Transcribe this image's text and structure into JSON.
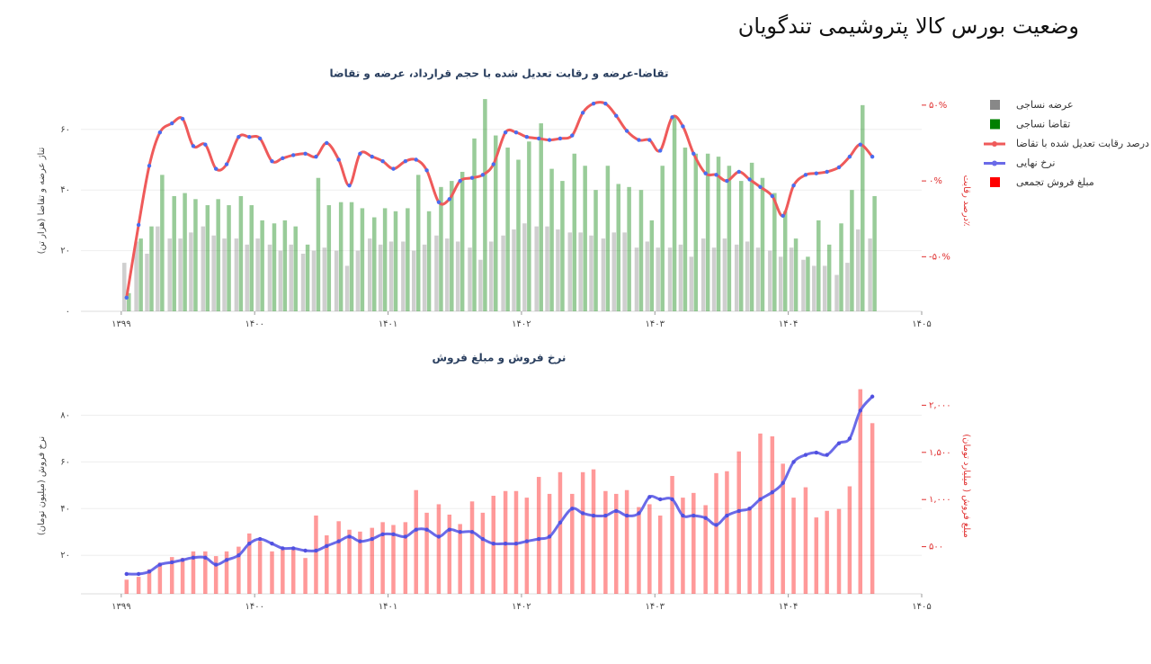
{
  "title": "وضعیت بورس کالا پتروشیمی تندگویان",
  "chart_data": [
    {
      "type": "combo",
      "title": "تقاضا-عرضه و رقابت تعدیل شده با حجم قرارداد، عرضه و تقاضا",
      "ylabel": "تناژ عرضه و تقاضا (هزار تن)",
      "y2label": "درصد رقابت٪",
      "x": [
        1399.04,
        1399.13,
        1399.21,
        1399.29,
        1399.38,
        1399.46,
        1399.54,
        1399.63,
        1399.71,
        1399.79,
        1399.88,
        1399.96,
        1400.04,
        1400.13,
        1400.21,
        1400.29,
        1400.38,
        1400.46,
        1400.54,
        1400.63,
        1400.71,
        1400.79,
        1400.88,
        1400.96,
        1401.04,
        1401.13,
        1401.21,
        1401.29,
        1401.38,
        1401.46,
        1401.54,
        1401.63,
        1401.71,
        1401.79,
        1401.88,
        1401.96,
        1402.04,
        1402.13,
        1402.21,
        1402.29,
        1402.38,
        1402.46,
        1402.54,
        1402.63,
        1402.71,
        1402.79,
        1402.88,
        1402.96,
        1403.04,
        1403.13,
        1403.21,
        1403.29,
        1403.38,
        1403.46,
        1403.54,
        1403.63,
        1403.71,
        1403.79,
        1403.88,
        1403.96,
        1404.04,
        1404.13,
        1404.21,
        1404.29,
        1404.38,
        1404.46,
        1404.54,
        1404.63
      ],
      "series": [
        {
          "name": "عرضه نساجی",
          "type": "bar",
          "color": "#888888",
          "values": [
            16,
            23,
            19,
            28,
            24,
            24,
            26,
            28,
            25,
            24,
            24,
            22,
            24,
            22,
            20,
            22,
            19,
            20,
            21,
            20,
            15,
            20,
            24,
            22,
            23,
            23,
            20,
            22,
            25,
            24,
            23,
            21,
            17,
            23,
            25,
            27,
            29,
            28,
            28,
            27,
            26,
            26,
            25,
            24,
            26,
            26,
            21,
            23,
            21,
            21,
            22,
            18,
            24,
            21,
            24,
            22,
            23,
            21,
            20,
            18,
            21,
            17,
            15,
            15,
            12,
            16,
            27,
            24
          ]
        },
        {
          "name": "تقاضا نساجی",
          "type": "bar",
          "color": "#008000",
          "values": [
            6,
            24,
            28,
            45,
            38,
            39,
            37,
            35,
            37,
            35,
            38,
            35,
            30,
            29,
            30,
            28,
            22,
            44,
            35,
            36,
            36,
            34,
            31,
            34,
            33,
            34,
            45,
            33,
            41,
            43,
            46,
            57,
            70,
            58,
            54,
            50,
            56,
            62,
            47,
            43,
            52,
            48,
            40,
            48,
            42,
            41,
            40,
            30,
            48,
            64,
            54,
            52,
            52,
            51,
            48,
            43,
            49,
            44,
            39,
            33,
            24,
            18,
            30,
            22,
            29,
            40,
            68,
            38
          ]
        },
        {
          "name": "درصد رقابت تعدیل شده با تقاضا",
          "type": "line",
          "axis": "y2",
          "color": "#ef5a5a",
          "values": [
            -77,
            -29,
            10,
            32,
            38,
            41,
            23,
            24,
            8,
            11,
            29,
            29,
            28,
            13,
            15,
            17,
            18,
            16,
            25,
            14,
            -3,
            18,
            16,
            13,
            8,
            13,
            14,
            7,
            -14,
            -12,
            0,
            2,
            4,
            11,
            32,
            32,
            29,
            28,
            27,
            28,
            30,
            45,
            51,
            51,
            43,
            33,
            27,
            27,
            20,
            42,
            36,
            18,
            5,
            4,
            0,
            6,
            1,
            -4,
            -10,
            -23,
            -3,
            4,
            5,
            6,
            9,
            16,
            24,
            16
          ]
        }
      ],
      "xlim": [
        1398.9,
        1405
      ],
      "xticks": [
        {
          "value": 1399,
          "label": "۱۳۹۹"
        },
        {
          "value": 1400,
          "label": "۱۴۰۰"
        },
        {
          "value": 1401,
          "label": "۱۴۰۱"
        },
        {
          "value": 1402,
          "label": "۱۴۰۲"
        },
        {
          "value": 1403,
          "label": "۱۴۰۳"
        },
        {
          "value": 1404,
          "label": "۱۴۰۴"
        },
        {
          "value": 1405,
          "label": "۱۴۰۵"
        }
      ],
      "ylim": [
        0,
        73
      ],
      "yticks": [
        {
          "value": 0,
          "label": "۰"
        },
        {
          "value": 20,
          "label": "۲۰"
        },
        {
          "value": 40,
          "label": "۴۰"
        },
        {
          "value": 60,
          "label": "۶۰"
        }
      ],
      "y2lim": [
        -86,
        60
      ],
      "y2ticks": [
        {
          "value": -50,
          "label": "-۵۰%"
        },
        {
          "value": 0,
          "label": "۰%"
        },
        {
          "value": 50,
          "label": "۵۰%"
        }
      ],
      "grid": true
    },
    {
      "type": "combo",
      "title": "نرخ فروش و مبلغ فروش",
      "ylabel": "نرخ فروش (میلیون تومان)",
      "y2label": "مبلغ فروش ( میلیارد تومان)",
      "x": [
        1399.04,
        1399.13,
        1399.21,
        1399.29,
        1399.38,
        1399.46,
        1399.54,
        1399.63,
        1399.71,
        1399.79,
        1399.88,
        1399.96,
        1400.04,
        1400.13,
        1400.21,
        1400.29,
        1400.38,
        1400.46,
        1400.54,
        1400.63,
        1400.71,
        1400.79,
        1400.88,
        1400.96,
        1401.04,
        1401.13,
        1401.21,
        1401.29,
        1401.38,
        1401.46,
        1401.54,
        1401.63,
        1401.71,
        1401.79,
        1401.88,
        1401.96,
        1402.04,
        1402.13,
        1402.21,
        1402.29,
        1402.38,
        1402.46,
        1402.54,
        1402.63,
        1402.71,
        1402.79,
        1402.88,
        1402.96,
        1403.04,
        1403.13,
        1403.21,
        1403.29,
        1403.38,
        1403.46,
        1403.54,
        1403.63,
        1403.71,
        1403.79,
        1403.88,
        1403.96,
        1404.04,
        1404.13,
        1404.21,
        1404.29,
        1404.38,
        1404.46,
        1404.54,
        1404.63
      ],
      "series": [
        {
          "name": "مبلغ فروش تجمعی",
          "type": "bar",
          "axis": "y2",
          "color": "#ff0000",
          "values": [
            150,
            180,
            260,
            330,
            390,
            380,
            450,
            450,
            400,
            450,
            500,
            640,
            560,
            450,
            470,
            470,
            380,
            830,
            620,
            770,
            680,
            660,
            700,
            760,
            730,
            760,
            1100,
            860,
            950,
            840,
            740,
            980,
            860,
            1040,
            1090,
            1090,
            1020,
            1240,
            1060,
            1290,
            1060,
            1290,
            1320,
            1090,
            1060,
            1100,
            920,
            950,
            830,
            1250,
            1020,
            1070,
            940,
            1280,
            1300,
            1510,
            920,
            1700,
            1670,
            1380,
            1020,
            1130,
            810,
            880,
            900,
            1140,
            2170,
            1810
          ]
        },
        {
          "name": "نرخ نهایی",
          "type": "line",
          "color": "#6a6ae8",
          "values": [
            12,
            12,
            13,
            16,
            17,
            18,
            19,
            19,
            16,
            18,
            20,
            25,
            27,
            25,
            23,
            23,
            22,
            22,
            24,
            26,
            28,
            26,
            27,
            29,
            29,
            28,
            31,
            31,
            28,
            31,
            30,
            30,
            27,
            25,
            25,
            25,
            26,
            27,
            28,
            34,
            40,
            38,
            37,
            37,
            39,
            37,
            38,
            45,
            44,
            44,
            37,
            37,
            36,
            33,
            37,
            39,
            40,
            44,
            47,
            51,
            60,
            63,
            64,
            63,
            68,
            70,
            82,
            88
          ]
        }
      ],
      "xlim": [
        1398.9,
        1405
      ],
      "xticks": [
        {
          "value": 1399,
          "label": "۱۳۹۹"
        },
        {
          "value": 1400,
          "label": "۱۴۰۰"
        },
        {
          "value": 1401,
          "label": "۱۴۰۱"
        },
        {
          "value": 1402,
          "label": "۱۴۰۲"
        },
        {
          "value": 1403,
          "label": "۱۴۰۳"
        },
        {
          "value": 1404,
          "label": "۱۴۰۴"
        },
        {
          "value": 1405,
          "label": "۱۴۰۵"
        }
      ],
      "ylim": [
        3.5,
        96
      ],
      "yticks": [
        {
          "value": 20,
          "label": "۲۰"
        },
        {
          "value": 40,
          "label": "۴۰"
        },
        {
          "value": 60,
          "label": "۶۰"
        },
        {
          "value": 80,
          "label": "۸۰"
        }
      ],
      "y2lim": [
        0,
        2290
      ],
      "y2ticks": [
        {
          "value": 500,
          "label": "۵۰۰"
        },
        {
          "value": 1000,
          "label": "۱,۰۰۰"
        },
        {
          "value": 1500,
          "label": "۱,۵۰۰"
        },
        {
          "value": 2000,
          "label": "۲,۰۰۰"
        }
      ],
      "grid": true
    }
  ]
}
